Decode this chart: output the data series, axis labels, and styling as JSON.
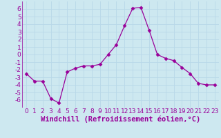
{
  "x": [
    0,
    1,
    2,
    3,
    4,
    5,
    6,
    7,
    8,
    9,
    10,
    11,
    12,
    13,
    14,
    15,
    16,
    17,
    18,
    19,
    20,
    21,
    22,
    23
  ],
  "y": [
    -2.5,
    -3.5,
    -3.5,
    -5.8,
    -6.4,
    -2.3,
    -1.8,
    -1.5,
    -1.5,
    -1.3,
    0.0,
    1.3,
    3.8,
    6.1,
    6.2,
    3.2,
    0.0,
    -0.5,
    -0.8,
    -1.7,
    -2.5,
    -3.8,
    -4.0,
    -4.0
  ],
  "line_color": "#990099",
  "marker": "D",
  "marker_size": 2.5,
  "bg_color": "#cde8f0",
  "grid_color": "#aaccdd",
  "xlabel": "Windchill (Refroidissement éolien,°C)",
  "ylim": [
    -7,
    7
  ],
  "xlim": [
    -0.5,
    23.5
  ],
  "yticks": [
    -6,
    -5,
    -4,
    -3,
    -2,
    -1,
    0,
    1,
    2,
    3,
    4,
    5,
    6
  ],
  "xticks": [
    0,
    1,
    2,
    3,
    4,
    5,
    6,
    7,
    8,
    9,
    10,
    11,
    12,
    13,
    14,
    15,
    16,
    17,
    18,
    19,
    20,
    21,
    22,
    23
  ],
  "tick_fontsize": 6.5,
  "xlabel_fontsize": 7.5,
  "label_color": "#990099",
  "grid_color2": "#b8d8e8"
}
